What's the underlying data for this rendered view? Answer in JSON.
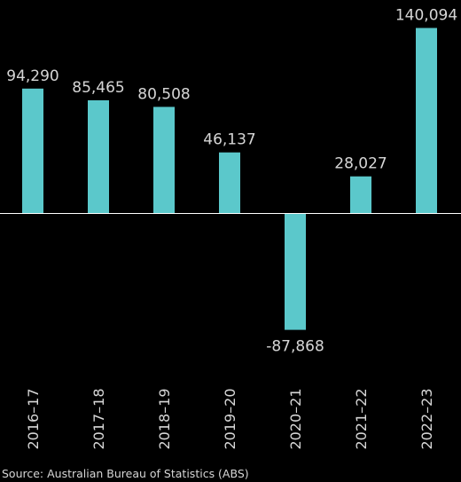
{
  "chart_data": {
    "type": "bar",
    "categories": [
      "2016–17",
      "2017–18",
      "2018–19",
      "2019–20",
      "2020–21",
      "2021–22",
      "2022–23"
    ],
    "values": [
      94290,
      85465,
      80508,
      46137,
      -87868,
      28027,
      140094
    ],
    "value_labels": [
      "94,290",
      "85,465",
      "80,508",
      "46,137",
      "-87,868",
      "28,027",
      "140,094"
    ],
    "title": "",
    "xlabel": "",
    "ylabel": "",
    "ylim": [
      -87868,
      140094
    ],
    "grid": false,
    "legend": "none",
    "colors": {
      "bar": "#5bc8cb",
      "background": "#000000",
      "text": "#d6d6d6",
      "baseline": "#ffffff"
    }
  },
  "source": "Source: Australian Bureau of Statistics (ABS)"
}
